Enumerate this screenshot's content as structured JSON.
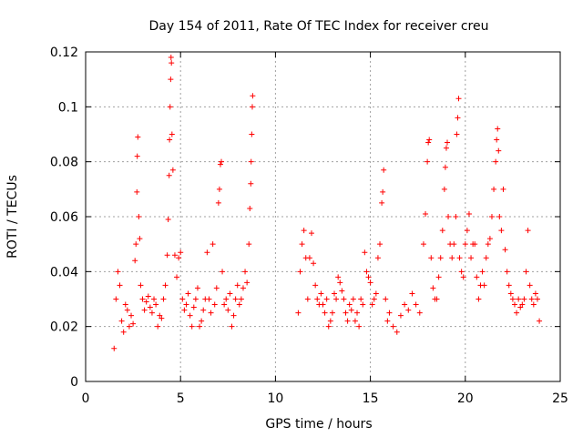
{
  "chart_data": {
    "type": "scatter",
    "title": "Day 154 of 2011, Rate Of TEC Index for receiver creu",
    "xlabel": "GPS time / hours",
    "ylabel": "ROTI / TECUs",
    "xlim": [
      0,
      25
    ],
    "ylim": [
      0,
      0.12
    ],
    "xticks": [
      0,
      5,
      10,
      15,
      20,
      25
    ],
    "yticks": [
      0,
      0.02,
      0.04,
      0.06,
      0.08,
      0.1,
      0.12
    ],
    "xtick_labels": [
      "0",
      "5",
      "10",
      "15",
      "20",
      "25"
    ],
    "ytick_labels": [
      "0",
      "0.02",
      "0.04",
      "0.06",
      "0.08",
      "0.1",
      "0.12"
    ],
    "grid": true,
    "legend": "none",
    "marker": "+",
    "color": "#ff0000",
    "series": [
      {
        "points": [
          [
            1.5,
            0.012
          ],
          [
            1.6,
            0.03
          ],
          [
            1.7,
            0.04
          ],
          [
            1.8,
            0.035
          ],
          [
            1.9,
            0.022
          ],
          [
            2.0,
            0.018
          ],
          [
            2.1,
            0.028
          ],
          [
            2.2,
            0.026
          ],
          [
            2.3,
            0.02
          ],
          [
            2.4,
            0.024
          ],
          [
            2.5,
            0.021
          ],
          [
            2.6,
            0.044
          ],
          [
            2.65,
            0.05
          ],
          [
            2.7,
            0.069
          ],
          [
            2.72,
            0.082
          ],
          [
            2.75,
            0.089
          ],
          [
            2.8,
            0.06
          ],
          [
            2.85,
            0.052
          ],
          [
            2.9,
            0.035
          ],
          [
            3.0,
            0.03
          ],
          [
            3.1,
            0.026
          ],
          [
            3.2,
            0.029
          ],
          [
            3.3,
            0.031
          ],
          [
            3.4,
            0.027
          ],
          [
            3.5,
            0.025
          ],
          [
            3.6,
            0.03
          ],
          [
            3.7,
            0.028
          ],
          [
            3.8,
            0.02
          ],
          [
            3.9,
            0.024
          ],
          [
            4.0,
            0.023
          ],
          [
            4.1,
            0.03
          ],
          [
            4.2,
            0.035
          ],
          [
            4.3,
            0.046
          ],
          [
            4.35,
            0.059
          ],
          [
            4.4,
            0.075
          ],
          [
            4.42,
            0.088
          ],
          [
            4.45,
            0.1
          ],
          [
            4.48,
            0.11
          ],
          [
            4.5,
            0.118
          ],
          [
            4.52,
            0.116
          ],
          [
            4.55,
            0.09
          ],
          [
            4.6,
            0.077
          ],
          [
            4.7,
            0.046
          ],
          [
            4.8,
            0.038
          ],
          [
            4.9,
            0.045
          ],
          [
            5.0,
            0.047
          ],
          [
            5.1,
            0.03
          ],
          [
            5.2,
            0.026
          ],
          [
            5.3,
            0.028
          ],
          [
            5.4,
            0.032
          ],
          [
            5.5,
            0.024
          ],
          [
            5.6,
            0.02
          ],
          [
            5.7,
            0.027
          ],
          [
            5.8,
            0.03
          ],
          [
            5.9,
            0.034
          ],
          [
            6.0,
            0.02
          ],
          [
            6.1,
            0.022
          ],
          [
            6.2,
            0.026
          ],
          [
            6.3,
            0.03
          ],
          [
            6.4,
            0.047
          ],
          [
            6.5,
            0.03
          ],
          [
            6.6,
            0.025
          ],
          [
            6.7,
            0.05
          ],
          [
            6.8,
            0.028
          ],
          [
            6.9,
            0.034
          ],
          [
            7.0,
            0.065
          ],
          [
            7.05,
            0.07
          ],
          [
            7.1,
            0.079
          ],
          [
            7.15,
            0.08
          ],
          [
            7.2,
            0.04
          ],
          [
            7.3,
            0.028
          ],
          [
            7.4,
            0.03
          ],
          [
            7.5,
            0.026
          ],
          [
            7.6,
            0.032
          ],
          [
            7.7,
            0.02
          ],
          [
            7.8,
            0.024
          ],
          [
            7.9,
            0.03
          ],
          [
            8.0,
            0.035
          ],
          [
            8.1,
            0.028
          ],
          [
            8.2,
            0.03
          ],
          [
            8.3,
            0.034
          ],
          [
            8.4,
            0.04
          ],
          [
            8.5,
            0.036
          ],
          [
            8.6,
            0.05
          ],
          [
            8.65,
            0.063
          ],
          [
            8.7,
            0.072
          ],
          [
            8.72,
            0.08
          ],
          [
            8.75,
            0.09
          ],
          [
            8.78,
            0.1
          ],
          [
            8.8,
            0.104
          ],
          [
            11.2,
            0.025
          ],
          [
            11.3,
            0.04
          ],
          [
            11.4,
            0.05
          ],
          [
            11.5,
            0.055
          ],
          [
            11.6,
            0.045
          ],
          [
            11.7,
            0.03
          ],
          [
            11.8,
            0.045
          ],
          [
            11.9,
            0.054
          ],
          [
            12.0,
            0.043
          ],
          [
            12.1,
            0.035
          ],
          [
            12.2,
            0.03
          ],
          [
            12.3,
            0.028
          ],
          [
            12.4,
            0.032
          ],
          [
            12.5,
            0.028
          ],
          [
            12.6,
            0.025
          ],
          [
            12.7,
            0.03
          ],
          [
            12.8,
            0.02
          ],
          [
            12.9,
            0.022
          ],
          [
            13.0,
            0.025
          ],
          [
            13.1,
            0.032
          ],
          [
            13.2,
            0.03
          ],
          [
            13.3,
            0.038
          ],
          [
            13.4,
            0.036
          ],
          [
            13.5,
            0.033
          ],
          [
            13.6,
            0.03
          ],
          [
            13.7,
            0.025
          ],
          [
            13.8,
            0.022
          ],
          [
            13.9,
            0.028
          ],
          [
            14.0,
            0.026
          ],
          [
            14.1,
            0.03
          ],
          [
            14.2,
            0.022
          ],
          [
            14.3,
            0.025
          ],
          [
            14.4,
            0.02
          ],
          [
            14.5,
            0.03
          ],
          [
            14.6,
            0.028
          ],
          [
            14.7,
            0.047
          ],
          [
            14.8,
            0.04
          ],
          [
            14.9,
            0.038
          ],
          [
            15.0,
            0.036
          ],
          [
            15.1,
            0.028
          ],
          [
            15.2,
            0.03
          ],
          [
            15.3,
            0.032
          ],
          [
            15.4,
            0.045
          ],
          [
            15.5,
            0.05
          ],
          [
            15.6,
            0.065
          ],
          [
            15.65,
            0.069
          ],
          [
            15.7,
            0.077
          ],
          [
            15.8,
            0.03
          ],
          [
            15.9,
            0.022
          ],
          [
            16.0,
            0.025
          ],
          [
            16.2,
            0.02
          ],
          [
            16.4,
            0.018
          ],
          [
            16.6,
            0.024
          ],
          [
            16.8,
            0.028
          ],
          [
            17.0,
            0.026
          ],
          [
            17.2,
            0.032
          ],
          [
            17.4,
            0.028
          ],
          [
            17.6,
            0.025
          ],
          [
            17.8,
            0.05
          ],
          [
            17.9,
            0.061
          ],
          [
            18.0,
            0.08
          ],
          [
            18.05,
            0.087
          ],
          [
            18.1,
            0.088
          ],
          [
            18.2,
            0.045
          ],
          [
            18.3,
            0.034
          ],
          [
            18.4,
            0.03
          ],
          [
            18.5,
            0.03
          ],
          [
            18.6,
            0.038
          ],
          [
            18.7,
            0.045
          ],
          [
            18.8,
            0.055
          ],
          [
            18.9,
            0.07
          ],
          [
            18.95,
            0.078
          ],
          [
            19.0,
            0.085
          ],
          [
            19.05,
            0.087
          ],
          [
            19.1,
            0.06
          ],
          [
            19.2,
            0.05
          ],
          [
            19.3,
            0.045
          ],
          [
            19.4,
            0.05
          ],
          [
            19.5,
            0.06
          ],
          [
            19.55,
            0.09
          ],
          [
            19.6,
            0.096
          ],
          [
            19.65,
            0.103
          ],
          [
            19.7,
            0.045
          ],
          [
            19.8,
            0.04
          ],
          [
            19.9,
            0.038
          ],
          [
            20.0,
            0.05
          ],
          [
            20.1,
            0.055
          ],
          [
            20.2,
            0.061
          ],
          [
            20.3,
            0.045
          ],
          [
            20.4,
            0.05
          ],
          [
            20.5,
            0.05
          ],
          [
            20.6,
            0.038
          ],
          [
            20.7,
            0.03
          ],
          [
            20.8,
            0.035
          ],
          [
            20.9,
            0.04
          ],
          [
            21.0,
            0.035
          ],
          [
            21.1,
            0.045
          ],
          [
            21.2,
            0.05
          ],
          [
            21.3,
            0.052
          ],
          [
            21.4,
            0.06
          ],
          [
            21.5,
            0.07
          ],
          [
            21.6,
            0.08
          ],
          [
            21.65,
            0.088
          ],
          [
            21.7,
            0.092
          ],
          [
            21.75,
            0.084
          ],
          [
            21.8,
            0.06
          ],
          [
            21.9,
            0.055
          ],
          [
            22.0,
            0.07
          ],
          [
            22.1,
            0.048
          ],
          [
            22.2,
            0.04
          ],
          [
            22.3,
            0.035
          ],
          [
            22.4,
            0.032
          ],
          [
            22.5,
            0.03
          ],
          [
            22.6,
            0.028
          ],
          [
            22.7,
            0.025
          ],
          [
            22.8,
            0.03
          ],
          [
            22.9,
            0.027
          ],
          [
            23.0,
            0.028
          ],
          [
            23.1,
            0.03
          ],
          [
            23.2,
            0.04
          ],
          [
            23.3,
            0.055
          ],
          [
            23.4,
            0.035
          ],
          [
            23.5,
            0.03
          ],
          [
            23.6,
            0.028
          ],
          [
            23.7,
            0.032
          ],
          [
            23.8,
            0.03
          ],
          [
            23.9,
            0.022
          ]
        ]
      }
    ]
  }
}
